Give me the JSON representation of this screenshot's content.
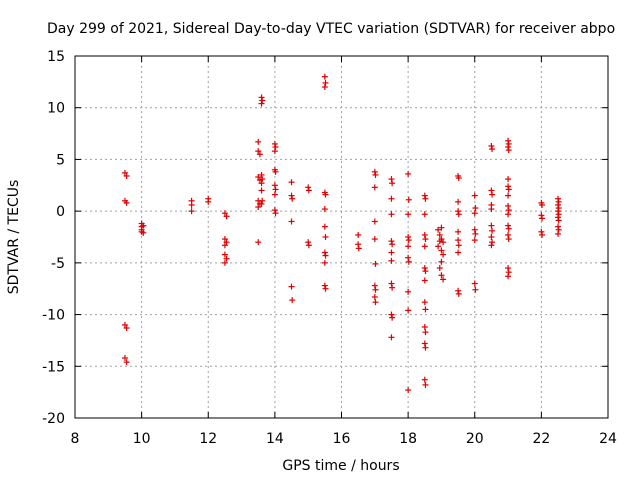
{
  "chart_data": {
    "type": "scatter",
    "title": "Day 299 of 2021, Sidereal Day-to-day VTEC variation (SDTVAR) for receiver abpo",
    "xlabel": "GPS time / hours",
    "ylabel": "SDTVAR / TECUs",
    "xlim": [
      8,
      24
    ],
    "ylim": [
      -20,
      15
    ],
    "xticks": [
      8,
      10,
      12,
      14,
      16,
      18,
      20,
      22,
      24
    ],
    "yticks": [
      -20,
      -15,
      -10,
      -5,
      0,
      5,
      10,
      15
    ],
    "grid": true,
    "marker": "plus",
    "color": "#e00000",
    "series": [
      {
        "name": "SDTVAR",
        "points": [
          [
            9.5,
            3.7
          ],
          [
            9.55,
            3.4
          ],
          [
            9.5,
            1.0
          ],
          [
            9.55,
            0.8
          ],
          [
            9.5,
            -11.0
          ],
          [
            9.55,
            -11.3
          ],
          [
            9.5,
            -14.2
          ],
          [
            9.55,
            -14.6
          ],
          [
            10.0,
            -1.2
          ],
          [
            10.0,
            -1.5
          ],
          [
            10.0,
            -1.8
          ],
          [
            10.05,
            -2.1
          ],
          [
            10.05,
            -1.4
          ],
          [
            10.0,
            -2.0
          ],
          [
            11.5,
            1.0
          ],
          [
            11.5,
            0.6
          ],
          [
            11.5,
            0.0
          ],
          [
            12.0,
            1.2
          ],
          [
            12.0,
            0.9
          ],
          [
            12.5,
            -0.2
          ],
          [
            12.55,
            -0.5
          ],
          [
            12.5,
            -2.7
          ],
          [
            12.55,
            -3.0
          ],
          [
            12.5,
            -3.3
          ],
          [
            12.5,
            -4.2
          ],
          [
            12.55,
            -4.6
          ],
          [
            12.5,
            -5.0
          ],
          [
            13.5,
            6.7
          ],
          [
            13.5,
            5.8
          ],
          [
            13.55,
            5.5
          ],
          [
            13.5,
            3.3
          ],
          [
            13.55,
            3.0
          ],
          [
            13.5,
            1.0
          ],
          [
            13.55,
            0.7
          ],
          [
            13.5,
            0.4
          ],
          [
            13.5,
            -3.0
          ],
          [
            13.6,
            11.0
          ],
          [
            13.62,
            10.7
          ],
          [
            13.6,
            10.4
          ],
          [
            13.6,
            3.5
          ],
          [
            13.62,
            3.1
          ],
          [
            13.6,
            2.7
          ],
          [
            13.6,
            2.0
          ],
          [
            13.62,
            1.0
          ],
          [
            13.6,
            0.7
          ],
          [
            14.0,
            6.5
          ],
          [
            14.02,
            6.2
          ],
          [
            14.0,
            5.8
          ],
          [
            14.0,
            4.0
          ],
          [
            14.02,
            3.8
          ],
          [
            14.0,
            2.5
          ],
          [
            14.02,
            2.1
          ],
          [
            14.0,
            1.6
          ],
          [
            14.0,
            0.1
          ],
          [
            14.02,
            -0.2
          ],
          [
            14.5,
            2.8
          ],
          [
            14.5,
            1.5
          ],
          [
            14.52,
            1.2
          ],
          [
            14.5,
            -1.0
          ],
          [
            14.5,
            -7.3
          ],
          [
            14.52,
            -8.6
          ],
          [
            15.0,
            2.3
          ],
          [
            15.02,
            2.0
          ],
          [
            15.0,
            -3.0
          ],
          [
            15.02,
            -3.3
          ],
          [
            15.5,
            13.0
          ],
          [
            15.52,
            12.4
          ],
          [
            15.5,
            12.0
          ],
          [
            15.5,
            1.8
          ],
          [
            15.52,
            1.6
          ],
          [
            15.5,
            0.2
          ],
          [
            15.5,
            -1.5
          ],
          [
            15.52,
            -2.5
          ],
          [
            15.5,
            -4.0
          ],
          [
            15.52,
            -4.3
          ],
          [
            15.5,
            -5.0
          ],
          [
            15.5,
            -7.2
          ],
          [
            15.52,
            -7.5
          ],
          [
            16.5,
            -2.3
          ],
          [
            16.5,
            -3.2
          ],
          [
            16.52,
            -3.6
          ],
          [
            17.0,
            3.8
          ],
          [
            17.02,
            3.5
          ],
          [
            17.0,
            2.3
          ],
          [
            17.0,
            -1.0
          ],
          [
            17.0,
            -2.7
          ],
          [
            17.02,
            -5.1
          ],
          [
            17.0,
            -7.2
          ],
          [
            17.02,
            -7.6
          ],
          [
            17.0,
            -8.3
          ],
          [
            17.02,
            -8.8
          ],
          [
            17.5,
            3.1
          ],
          [
            17.52,
            2.7
          ],
          [
            17.5,
            1.2
          ],
          [
            17.5,
            -0.3
          ],
          [
            17.5,
            -2.9
          ],
          [
            17.52,
            -3.2
          ],
          [
            17.5,
            -4.0
          ],
          [
            17.5,
            -4.8
          ],
          [
            17.5,
            -7.0
          ],
          [
            17.52,
            -7.4
          ],
          [
            17.5,
            -10.0
          ],
          [
            17.52,
            -10.3
          ],
          [
            17.5,
            -12.2
          ],
          [
            18.0,
            3.6
          ],
          [
            18.02,
            1.1
          ],
          [
            18.0,
            -0.3
          ],
          [
            18.0,
            -2.5
          ],
          [
            18.02,
            -2.8
          ],
          [
            18.0,
            -3.4
          ],
          [
            18.0,
            -4.5
          ],
          [
            18.02,
            -4.9
          ],
          [
            18.0,
            -7.8
          ],
          [
            18.0,
            -9.6
          ],
          [
            18.0,
            -17.3
          ],
          [
            18.5,
            1.5
          ],
          [
            18.52,
            1.2
          ],
          [
            18.5,
            -0.3
          ],
          [
            18.5,
            -2.3
          ],
          [
            18.52,
            -2.7
          ],
          [
            18.5,
            -3.4
          ],
          [
            18.5,
            -5.5
          ],
          [
            18.52,
            -5.8
          ],
          [
            18.5,
            -6.7
          ],
          [
            18.5,
            -8.8
          ],
          [
            18.52,
            -9.5
          ],
          [
            18.5,
            -11.2
          ],
          [
            18.52,
            -11.7
          ],
          [
            18.5,
            -12.8
          ],
          [
            18.52,
            -13.2
          ],
          [
            18.5,
            -16.3
          ],
          [
            18.52,
            -16.8
          ],
          [
            18.9,
            -1.8
          ],
          [
            18.95,
            -2.3
          ],
          [
            19.0,
            -2.7
          ],
          [
            19.05,
            -3.0
          ],
          [
            18.9,
            -3.4
          ],
          [
            19.0,
            -3.8
          ],
          [
            19.05,
            -4.2
          ],
          [
            19.0,
            -4.9
          ],
          [
            18.95,
            -5.5
          ],
          [
            19.0,
            -6.2
          ],
          [
            19.05,
            -6.6
          ],
          [
            19.0,
            -1.6
          ],
          [
            18.95,
            -2.9
          ],
          [
            19.5,
            3.4
          ],
          [
            19.52,
            3.2
          ],
          [
            19.5,
            0.9
          ],
          [
            19.5,
            0.0
          ],
          [
            19.52,
            -0.3
          ],
          [
            19.5,
            -2.0
          ],
          [
            19.5,
            -2.8
          ],
          [
            19.52,
            -3.3
          ],
          [
            19.5,
            -4.0
          ],
          [
            19.5,
            -7.7
          ],
          [
            19.52,
            -8.0
          ],
          [
            20.0,
            1.5
          ],
          [
            20.02,
            0.3
          ],
          [
            20.0,
            -0.2
          ],
          [
            20.0,
            -1.8
          ],
          [
            20.02,
            -2.2
          ],
          [
            20.0,
            -2.8
          ],
          [
            20.0,
            -7.0
          ],
          [
            20.02,
            -7.6
          ],
          [
            20.5,
            6.3
          ],
          [
            20.52,
            6.0
          ],
          [
            20.5,
            2.0
          ],
          [
            20.52,
            1.6
          ],
          [
            20.5,
            0.6
          ],
          [
            20.5,
            0.2
          ],
          [
            20.5,
            -1.4
          ],
          [
            20.52,
            -1.9
          ],
          [
            20.5,
            -2.5
          ],
          [
            20.52,
            -3.0
          ],
          [
            20.5,
            -3.3
          ],
          [
            21.0,
            6.8
          ],
          [
            21.02,
            6.5
          ],
          [
            21.0,
            6.2
          ],
          [
            21.02,
            5.9
          ],
          [
            21.0,
            3.1
          ],
          [
            21.0,
            2.4
          ],
          [
            21.02,
            2.1
          ],
          [
            21.0,
            1.5
          ],
          [
            21.0,
            0.5
          ],
          [
            21.02,
            0.1
          ],
          [
            21.0,
            -0.3
          ],
          [
            21.0,
            -1.4
          ],
          [
            21.02,
            -1.7
          ],
          [
            21.0,
            -2.3
          ],
          [
            21.02,
            -2.7
          ],
          [
            21.0,
            -5.5
          ],
          [
            21.02,
            -5.9
          ],
          [
            21.0,
            -6.3
          ],
          [
            22.0,
            0.8
          ],
          [
            22.02,
            0.6
          ],
          [
            22.0,
            -0.4
          ],
          [
            22.02,
            -0.7
          ],
          [
            22.0,
            -2.0
          ],
          [
            22.02,
            -2.3
          ],
          [
            22.5,
            1.2
          ],
          [
            22.52,
            0.9
          ],
          [
            22.5,
            0.6
          ],
          [
            22.52,
            0.3
          ],
          [
            22.5,
            0.0
          ],
          [
            22.52,
            -0.3
          ],
          [
            22.5,
            -0.6
          ],
          [
            22.52,
            -0.9
          ],
          [
            22.5,
            -1.5
          ],
          [
            22.52,
            -1.8
          ],
          [
            22.5,
            -2.2
          ]
        ]
      }
    ]
  }
}
